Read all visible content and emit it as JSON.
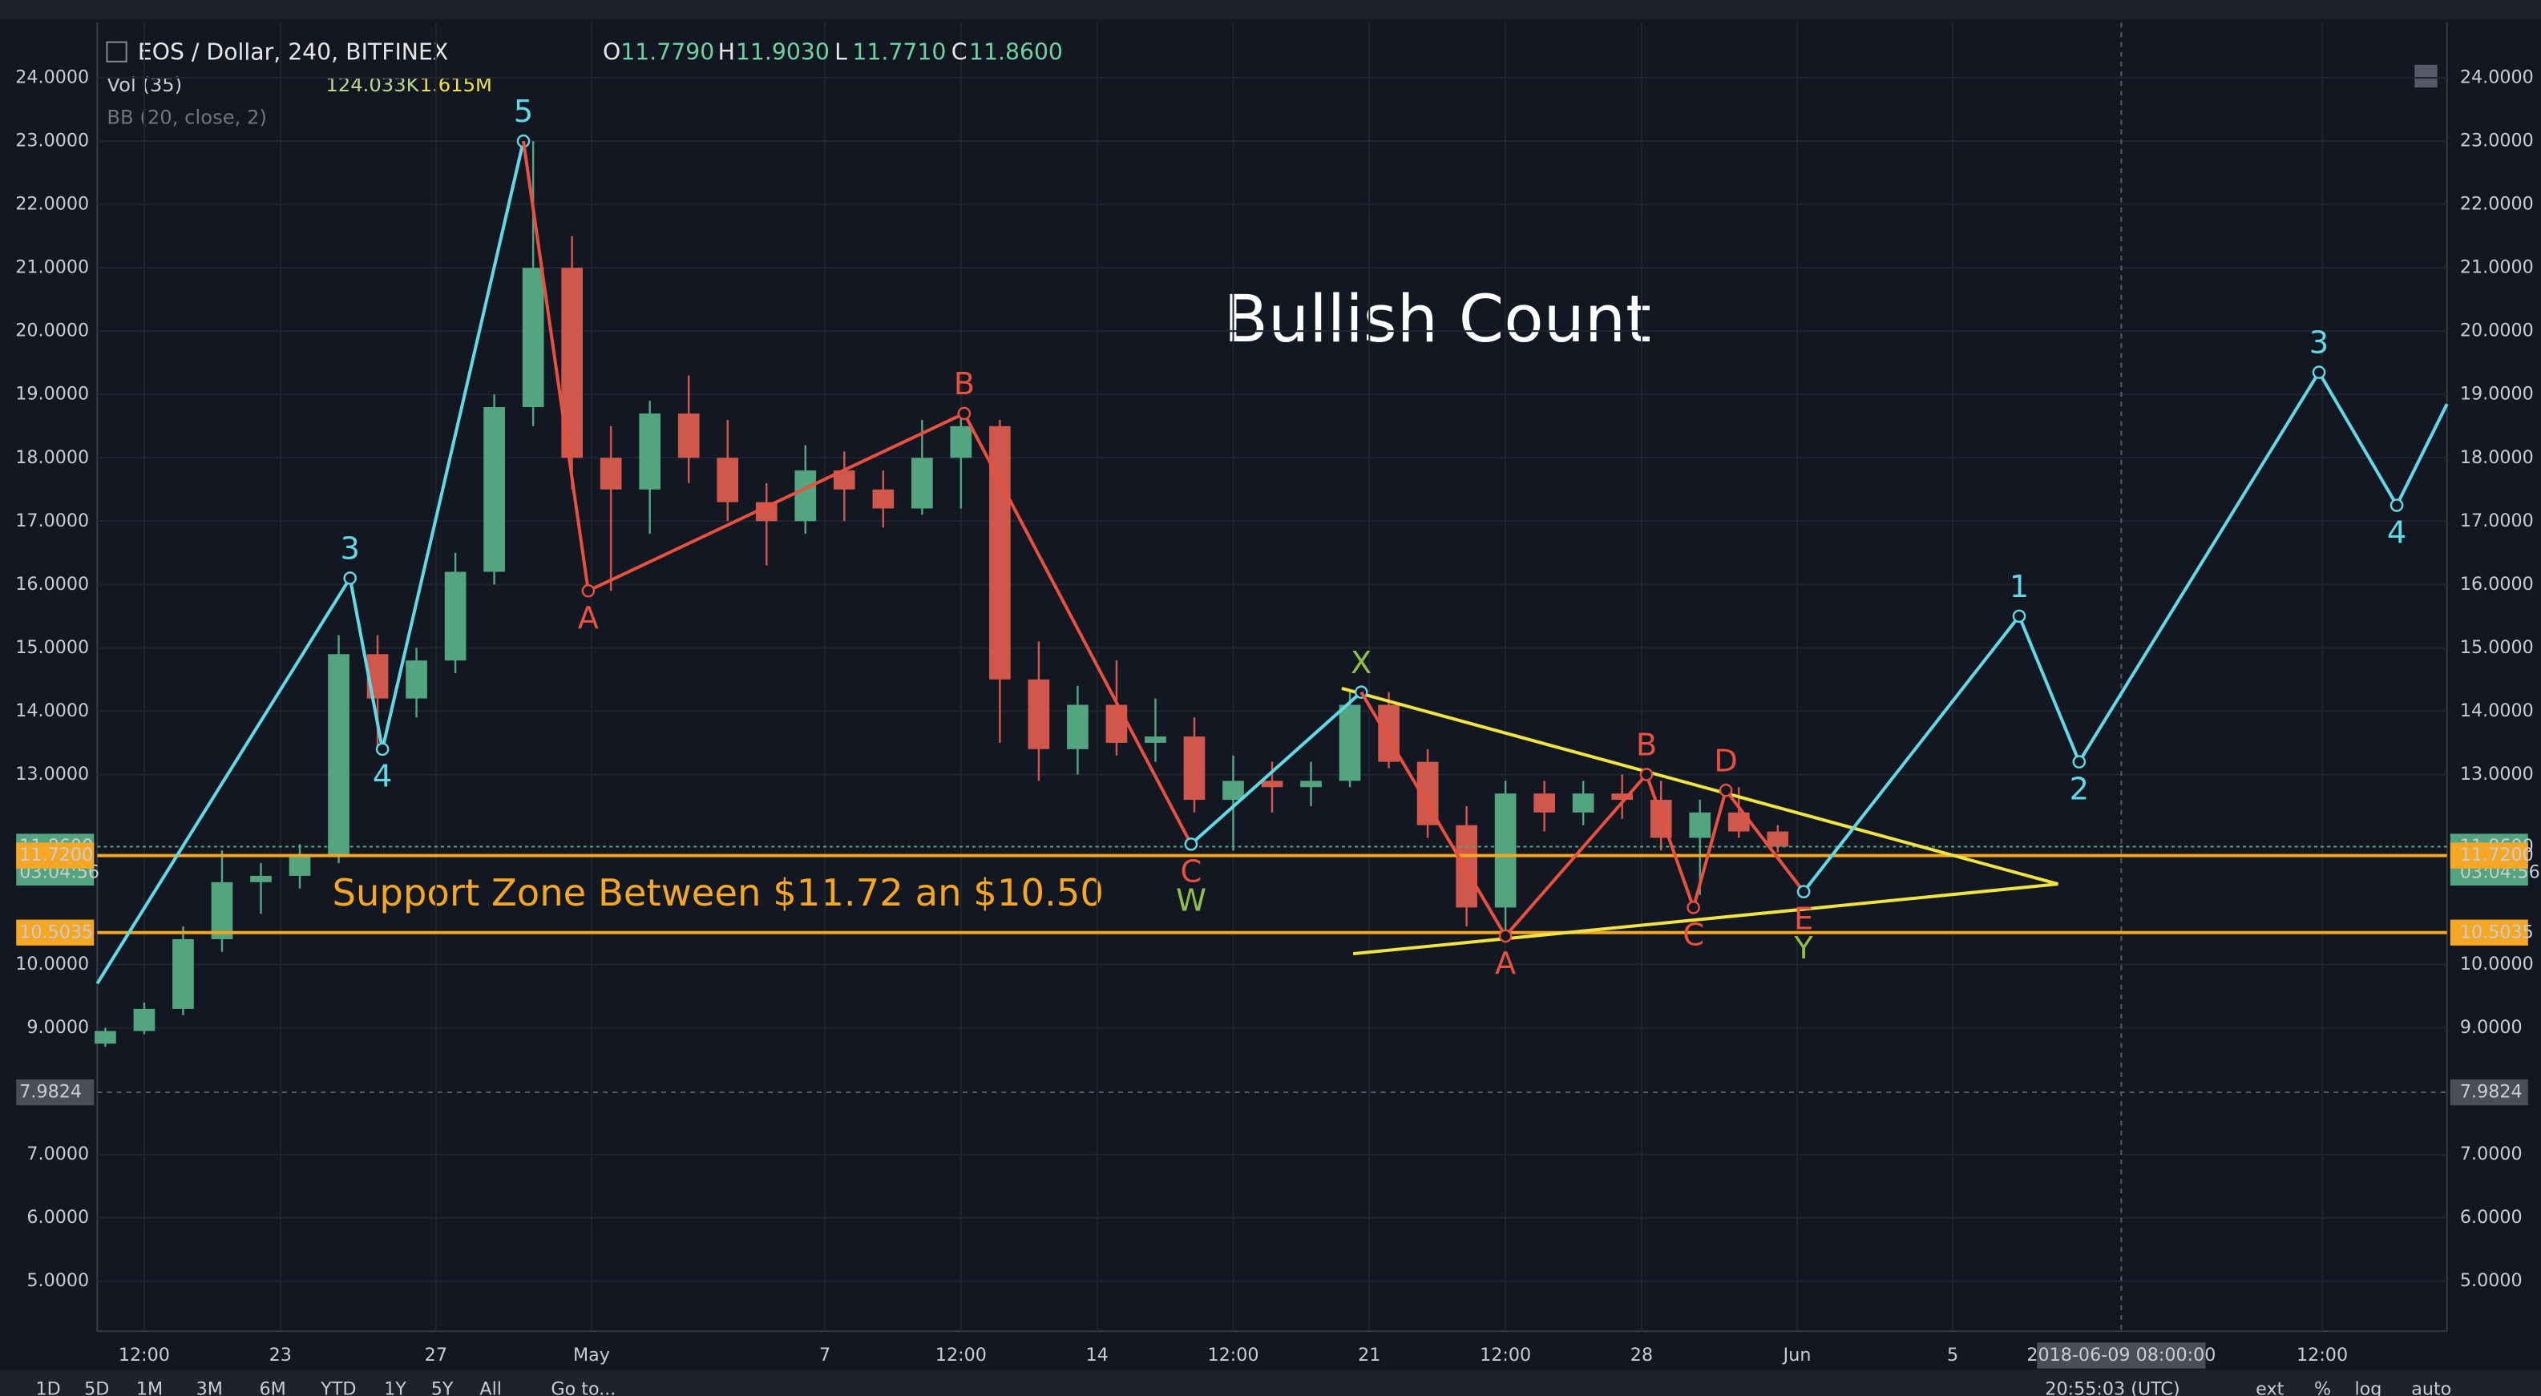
{
  "chart_data": {
    "type": "candlestick",
    "title": "Bullish Count",
    "subtitle": "Support Zone Between $11.72 an $10.50",
    "header": {
      "symbol": "EOS / Dollar, 240, BITFINEX",
      "ohlc": [
        {
          "key": "O",
          "value": "11.7790"
        },
        {
          "key": "H",
          "value": "11.9030"
        },
        {
          "key": "L",
          "value": "11.7710"
        },
        {
          "key": "C",
          "value": "11.8600"
        }
      ],
      "volume": {
        "name": "Vol (35)",
        "values": [
          "124.033K",
          "1.615M"
        ]
      },
      "bb": "BB (20, close, 2)"
    },
    "xlim": [
      "2018-04-18T07:00",
      "2018-06-17T17:00"
    ],
    "xticks": [
      {
        "value": "2018-04-19T12:00",
        "label": "12:00"
      },
      {
        "value": "2018-04-23T00:00",
        "label": "23"
      },
      {
        "value": "2018-04-27T00:00",
        "label": "27"
      },
      {
        "value": "2018-05-01T00:00",
        "label": "May"
      },
      {
        "value": "2018-05-07T00:00",
        "label": "7"
      },
      {
        "value": "2018-05-10T12:00",
        "label": "12:00"
      },
      {
        "value": "2018-05-14T00:00",
        "label": "14"
      },
      {
        "value": "2018-05-17T12:00",
        "label": "12:00"
      },
      {
        "value": "2018-05-21T00:00",
        "label": "21"
      },
      {
        "value": "2018-05-24T12:00",
        "label": "12:00"
      },
      {
        "value": "2018-05-28T00:00",
        "label": "28"
      },
      {
        "value": "2018-06-01T00:00",
        "label": "Jun"
      },
      {
        "value": "2018-06-05T00:00",
        "label": "5"
      },
      {
        "value": "2018-06-14T12:00",
        "label": "12:00"
      }
    ],
    "ylim": [
      4.21,
      24.87
    ],
    "yticks": [
      {
        "value": 5,
        "label": "5.0000"
      },
      {
        "value": 6,
        "label": "6.0000"
      },
      {
        "value": 7,
        "label": "7.0000"
      },
      {
        "value": 9,
        "label": "9.0000"
      },
      {
        "value": 10,
        "label": "10.0000"
      },
      {
        "value": 13,
        "label": "13.0000"
      },
      {
        "value": 14,
        "label": "14.0000"
      },
      {
        "value": 15,
        "label": "15.0000"
      },
      {
        "value": 16,
        "label": "16.0000"
      },
      {
        "value": 17,
        "label": "17.0000"
      },
      {
        "value": 18,
        "label": "18.0000"
      },
      {
        "value": 19,
        "label": "19.0000"
      },
      {
        "value": 20,
        "label": "20.0000"
      },
      {
        "value": 21,
        "label": "21.0000"
      },
      {
        "value": 22,
        "label": "22.0000"
      },
      {
        "value": 23,
        "label": "23.0000"
      },
      {
        "value": 24,
        "label": "24.0000"
      }
    ],
    "grid": true,
    "up_color": "#53a57f",
    "down_color": "#d0574b",
    "candles": {
      "x": [
        "2018-04-18T12:00",
        "2018-04-19T12:00",
        "2018-04-20T12:00",
        "2018-04-21T12:00",
        "2018-04-22T12:00",
        "2018-04-23T12:00",
        "2018-04-24T12:00",
        "2018-04-25T12:00",
        "2018-04-26T12:00",
        "2018-04-27T12:00",
        "2018-04-28T12:00",
        "2018-04-29T12:00",
        "2018-04-30T12:00",
        "2018-05-01T12:00",
        "2018-05-02T12:00",
        "2018-05-03T12:00",
        "2018-05-04T12:00",
        "2018-05-05T12:00",
        "2018-05-06T12:00",
        "2018-05-07T12:00",
        "2018-05-08T12:00",
        "2018-05-09T12:00",
        "2018-05-10T12:00",
        "2018-05-11T12:00",
        "2018-05-12T12:00",
        "2018-05-13T12:00",
        "2018-05-14T12:00",
        "2018-05-15T12:00",
        "2018-05-16T12:00",
        "2018-05-17T12:00",
        "2018-05-18T12:00",
        "2018-05-19T12:00",
        "2018-05-20T12:00",
        "2018-05-21T12:00",
        "2018-05-22T12:00",
        "2018-05-23T12:00",
        "2018-05-24T12:00",
        "2018-05-25T12:00",
        "2018-05-26T12:00",
        "2018-05-27T12:00",
        "2018-05-28T12:00",
        "2018-05-29T12:00",
        "2018-05-30T12:00",
        "2018-05-31T12:00"
      ],
      "open": [
        8.75,
        8.95,
        9.3,
        10.4,
        11.3,
        11.4,
        11.7,
        14.9,
        14.2,
        14.8,
        16.2,
        18.8,
        21.0,
        18.0,
        17.5,
        18.7,
        18.0,
        17.3,
        17.0,
        17.8,
        17.5,
        17.2,
        18.0,
        18.5,
        14.5,
        13.4,
        14.1,
        13.5,
        13.6,
        12.6,
        12.9,
        12.8,
        12.9,
        14.1,
        13.2,
        12.2,
        10.9,
        12.7,
        12.4,
        12.7,
        12.6,
        12.0,
        12.4,
        12.1
      ],
      "high": [
        9.0,
        9.4,
        10.6,
        11.8,
        11.6,
        11.9,
        15.2,
        15.2,
        15.0,
        16.5,
        19.0,
        23.0,
        21.5,
        18.5,
        18.9,
        19.3,
        18.6,
        17.6,
        18.2,
        18.1,
        17.8,
        18.6,
        18.7,
        18.6,
        15.1,
        14.4,
        14.8,
        14.2,
        13.9,
        13.3,
        13.2,
        13.2,
        14.3,
        14.3,
        13.4,
        12.5,
        12.9,
        12.9,
        12.9,
        13.0,
        12.9,
        12.6,
        12.8,
        12.2
      ],
      "low": [
        8.7,
        8.9,
        9.2,
        10.2,
        10.8,
        11.2,
        11.6,
        13.4,
        13.9,
        14.6,
        16.0,
        18.5,
        17.5,
        15.9,
        16.8,
        17.6,
        17.0,
        16.3,
        16.8,
        17.0,
        16.9,
        17.1,
        17.2,
        13.5,
        12.9,
        13.0,
        13.3,
        13.2,
        12.4,
        11.8,
        12.4,
        12.5,
        12.8,
        13.1,
        12.0,
        10.6,
        10.5,
        12.1,
        12.2,
        12.3,
        11.8,
        11.1,
        12.0,
        11.77
      ],
      "close": [
        8.95,
        9.3,
        10.4,
        11.3,
        11.4,
        11.7,
        14.9,
        14.2,
        14.8,
        16.2,
        18.8,
        21.0,
        18.0,
        17.5,
        18.7,
        18.0,
        17.3,
        17.0,
        17.8,
        17.5,
        17.2,
        18.0,
        18.5,
        14.5,
        13.4,
        14.1,
        13.5,
        13.6,
        12.6,
        12.9,
        12.8,
        12.9,
        14.1,
        13.2,
        12.2,
        10.9,
        12.7,
        12.4,
        12.7,
        12.6,
        12.0,
        12.4,
        12.1,
        11.86
      ]
    },
    "waves": [
      {
        "color": "#62d8e6",
        "x": [
          "2018-04-18T07:00",
          "2018-04-24T19:00",
          "2018-04-25T15:00",
          "2018-04-29T06:00"
        ],
        "values": [
          9.7,
          16.1,
          13.4,
          23.0
        ],
        "labels": [
          null,
          "3",
          "4",
          "5"
        ],
        "label_colors": [
          null,
          "#62d8e6",
          "#62d8e6",
          "#62d8e6"
        ]
      },
      {
        "color": "#e8503f",
        "x": [
          "2018-04-29T06:00",
          "2018-04-30T22:00",
          "2018-05-10T14:00",
          "2018-05-16T10:00"
        ],
        "values": [
          23.0,
          15.9,
          18.7,
          11.9
        ],
        "labels": [
          null,
          "A",
          "B",
          "C"
        ],
        "label_colors": [
          null,
          "#e8503f",
          "#e8503f",
          "#e8503f"
        ]
      },
      {
        "color": "#62d8e6",
        "x": [
          "2018-05-16T10:00",
          "2018-05-20T19:00"
        ],
        "values": [
          11.9,
          14.3
        ],
        "labels": [
          "W",
          "X"
        ],
        "label_colors": [
          "#8fbf4a",
          "#8fbf4a"
        ]
      },
      {
        "color": "#e8503f",
        "x": [
          "2018-05-20T19:00",
          "2018-05-24T12:00",
          "2018-05-28T03:00",
          "2018-05-29T08:00",
          "2018-05-30T04:00",
          "2018-06-01T04:00"
        ],
        "values": [
          14.3,
          10.45,
          13.0,
          10.9,
          12.75,
          11.15
        ],
        "labels": [
          null,
          "A",
          "B",
          "C",
          "D",
          "E"
        ],
        "label_colors": [
          null,
          "#e8503f",
          "#e8503f",
          "#e8503f",
          "#e8503f",
          "#e8503f"
        ]
      },
      {
        "color": "#62d8e6",
        "x": [
          "2018-06-01T04:00",
          "2018-06-06T17:00",
          "2018-06-08T06:00",
          "2018-06-14T10:00",
          "2018-06-16T10:00",
          "2018-06-17T17:00"
        ],
        "values": [
          11.15,
          15.5,
          13.2,
          19.35,
          17.25,
          18.85
        ],
        "labels": [
          "Y",
          "1",
          "2",
          "3",
          "4",
          null
        ],
        "label_colors": [
          "#8fbf4a",
          "#62d8e6",
          "#62d8e6",
          "#62d8e6",
          "#62d8e6",
          null
        ]
      }
    ],
    "trendlines": [
      {
        "color": "#f0e442",
        "x": [
          "2018-05-20T07:00",
          "2018-06-07T17:00"
        ],
        "values": [
          14.36,
          11.27
        ]
      },
      {
        "color": "#f0e442",
        "x": [
          "2018-05-20T14:00",
          "2018-06-07T17:00"
        ],
        "values": [
          10.17,
          11.27
        ]
      }
    ],
    "price_lines": [
      {
        "value": 11.86,
        "label": "11.8600",
        "color": "#53a57f",
        "countdown": "03:04:56"
      },
      {
        "value": 11.72,
        "label": "11.7200",
        "color": "#f5a623"
      },
      {
        "value": 10.5035,
        "label": "10.5035",
        "color": "#f5a623"
      }
    ],
    "crosshair": {
      "x": "2018-06-09T08:00",
      "x_label": "2018-06-09 08:00:00",
      "y": 7.9824,
      "y_label": "7.9824"
    },
    "footer": {
      "timeframes": [
        "1D",
        "5D",
        "1M",
        "3M",
        "6M",
        "YTD",
        "1Y",
        "5Y",
        "All"
      ],
      "goto": "Go to...",
      "clock": "20:55:03 (UTC)",
      "options": [
        "ext",
        "%",
        "log",
        "auto"
      ]
    }
  }
}
